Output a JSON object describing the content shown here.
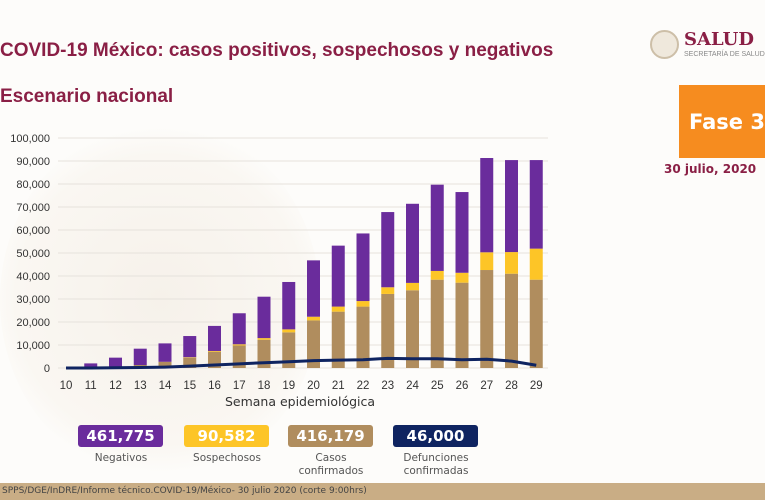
{
  "header": {
    "title": "COVID-19 México: casos positivos, sospechosos y negativos",
    "subtitle": "Escenario nacional",
    "logo_text": "SALUD",
    "logo_subtext": "SECRETARÍA DE SALUD",
    "phase": "Fase 3",
    "date": "30 julio, 2020"
  },
  "chart_data": {
    "type": "bar",
    "stacked": true,
    "xlabel": "Semana epidemiológica",
    "ylabel": "",
    "ylim": [
      0,
      100000
    ],
    "yticks": [
      "0",
      "10,000",
      "20,000",
      "30,000",
      "40,000",
      "50,000",
      "60,000",
      "70,000",
      "80,000",
      "90,000",
      "100,000"
    ],
    "grid": true,
    "categories": [
      "10",
      "11",
      "12",
      "13",
      "14",
      "15",
      "16",
      "17",
      "18",
      "19",
      "20",
      "21",
      "22",
      "23",
      "24",
      "25",
      "26",
      "27",
      "28",
      "29"
    ],
    "series": [
      {
        "name": "Casos confirmados",
        "color": "#b08d5e",
        "values": [
          0,
          300,
          500,
          1300,
          2700,
          4500,
          7100,
          9800,
          12300,
          15500,
          20700,
          24500,
          26700,
          32200,
          33800,
          38400,
          37100,
          42600,
          41000,
          38400
        ]
      },
      {
        "name": "Sospechosos",
        "color": "#fdc527",
        "values": [
          0,
          0,
          0,
          0,
          0,
          200,
          300,
          500,
          700,
          1300,
          1600,
          2200,
          2400,
          2900,
          3200,
          3800,
          4300,
          7700,
          9400,
          13500
        ]
      },
      {
        "name": "Negativos",
        "color": "#6a2c9c",
        "values": [
          0,
          1700,
          4000,
          7100,
          8000,
          9200,
          10900,
          13500,
          18000,
          20600,
          24500,
          26500,
          29400,
          32700,
          34400,
          37500,
          35100,
          41000,
          40000,
          38500
        ]
      },
      {
        "name": "Defunciones confirmadas",
        "type": "line",
        "color": "#0f2461",
        "values": [
          0,
          0,
          100,
          200,
          400,
          800,
          1300,
          1800,
          2300,
          2700,
          3200,
          3400,
          3600,
          4200,
          4000,
          4000,
          3600,
          3800,
          3000,
          1200
        ]
      }
    ],
    "totals": [
      {
        "value": "461,775",
        "label": "Negativos",
        "color": "#6a2c9c"
      },
      {
        "value": "90,582",
        "label": "Sospechosos",
        "color": "#fdc527"
      },
      {
        "value": "416,179",
        "label": "Casos confirmados",
        "color": "#b08d5e"
      },
      {
        "value": "46,000",
        "label": "Defunciones confirmadas",
        "color": "#0f2461"
      }
    ]
  },
  "footer": {
    "source": "SPPS/DGE/InDRE/Informe técnico.COVID-19/México- 30 julio 2020 (corte 9:00hrs)"
  }
}
